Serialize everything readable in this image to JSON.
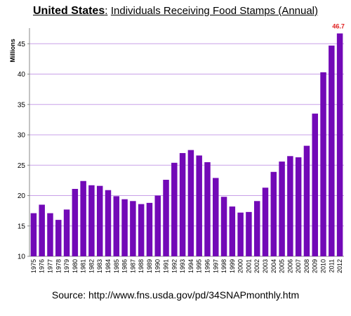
{
  "title": {
    "country": "United States",
    "separator": ":",
    "rest": "Individuals Receiving Food Stamps (Annual)"
  },
  "source": "Source: http://www.fns.usda.gov/pd/34SNAPmonthly.htm",
  "chart_data": {
    "type": "bar",
    "ylabel": "Millions",
    "ylim": [
      10,
      47
    ],
    "yticks": [
      10,
      15,
      20,
      25,
      30,
      35,
      40,
      45
    ],
    "grid": true,
    "bar_color": "#7209B7",
    "grid_color": "#C8A0E8",
    "highlight_label_color": "#E02020",
    "categories": [
      "1975",
      "1976",
      "1977",
      "1978",
      "1979",
      "1980",
      "1981",
      "1982",
      "1983",
      "1984",
      "1985",
      "1986",
      "1987",
      "1988",
      "1989",
      "1990",
      "1991",
      "1992",
      "1993",
      "1994",
      "1995",
      "1996",
      "1997",
      "1998",
      "1999",
      "2000",
      "2001",
      "2002",
      "2003",
      "2004",
      "2005",
      "2006",
      "2007",
      "2008",
      "2009",
      "2010",
      "2011",
      "2012"
    ],
    "values": [
      17.1,
      18.5,
      17.1,
      16.0,
      17.7,
      21.1,
      22.4,
      21.7,
      21.6,
      20.9,
      19.9,
      19.4,
      19.1,
      18.6,
      18.8,
      20.0,
      22.6,
      25.4,
      27.0,
      27.5,
      26.6,
      25.5,
      22.9,
      19.8,
      18.2,
      17.2,
      17.3,
      19.1,
      21.3,
      23.9,
      25.6,
      26.5,
      26.3,
      28.2,
      33.5,
      40.3,
      44.7,
      46.7
    ],
    "annotation": {
      "category": "2012",
      "text": "46.7"
    }
  }
}
